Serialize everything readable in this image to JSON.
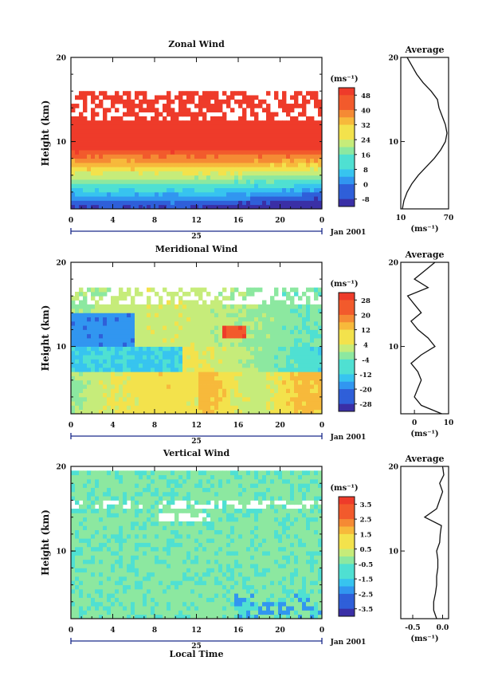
{
  "chart_data": [
    {
      "type": "heatmap",
      "title": "Zonal Wind",
      "ylabel": "Height (km)",
      "ylim": [
        2,
        20
      ],
      "yticks": [
        "10",
        "20"
      ],
      "xticks": [
        "0",
        "4",
        "8",
        "12",
        "16",
        "20",
        "0"
      ],
      "day_label": "25",
      "month_label": "Jan 2001",
      "colorbar": {
        "unit": "(ms⁻¹)",
        "ticks": [
          "48",
          "40",
          "32",
          "24",
          "16",
          "8",
          "0",
          "-8"
        ],
        "range": [
          -12,
          52
        ]
      },
      "average_profile": {
        "title": "Average",
        "xlabel": "(ms⁻¹)",
        "xticks": [
          "10",
          "70"
        ],
        "xlim": [
          10,
          70
        ],
        "yticks": [
          "10",
          "20"
        ],
        "heights_km": [
          2,
          3,
          4,
          5,
          6,
          7,
          8,
          9,
          10,
          11,
          12,
          13,
          14,
          15,
          16,
          17,
          18,
          19,
          20
        ],
        "values": [
          12,
          14,
          18,
          24,
          32,
          42,
          52,
          60,
          66,
          68,
          66,
          62,
          58,
          56,
          48,
          38,
          30,
          24,
          18
        ]
      }
    },
    {
      "type": "heatmap",
      "title": "Meridional Wind",
      "ylabel": "Height (km)",
      "ylim": [
        2,
        20
      ],
      "yticks": [
        "10",
        "20"
      ],
      "xticks": [
        "0",
        "4",
        "8",
        "12",
        "16",
        "20",
        "0"
      ],
      "day_label": "25",
      "month_label": "Jan 2001",
      "colorbar": {
        "unit": "(ms⁻¹)",
        "ticks": [
          "28",
          "20",
          "12",
          "4",
          "-4",
          "-12",
          "-20",
          "-28"
        ],
        "range": [
          -32,
          32
        ]
      },
      "average_profile": {
        "title": "Average",
        "xlabel": "(ms⁻¹)",
        "xticks": [
          "0",
          "10"
        ],
        "xlim": [
          -4,
          10
        ],
        "yticks": [
          "10",
          "20"
        ],
        "heights_km": [
          2,
          3,
          4,
          5,
          6,
          7,
          8,
          9,
          10,
          11,
          12,
          13,
          14,
          15,
          16,
          17,
          18,
          19,
          20
        ],
        "values": [
          8,
          2,
          0,
          1,
          2,
          1,
          -1,
          2,
          6,
          4,
          1,
          -1,
          2,
          0,
          -2,
          4,
          0,
          3,
          6
        ]
      }
    },
    {
      "type": "heatmap",
      "title": "Vertical Wind",
      "ylabel": "Height (km)",
      "xlabel": "Local Time",
      "ylim": [
        2,
        20
      ],
      "yticks": [
        "10",
        "20"
      ],
      "xticks": [
        "0",
        "4",
        "8",
        "12",
        "16",
        "20",
        "0"
      ],
      "day_label": "25",
      "month_label": "Jan 2001",
      "colorbar": {
        "unit": "(ms⁻¹)",
        "ticks": [
          "3.5",
          "2.5",
          "1.5",
          "0.5",
          "-0.5",
          "-1.5",
          "-2.5",
          "-3.5"
        ],
        "range": [
          -4,
          4
        ]
      },
      "average_profile": {
        "title": "Average",
        "xlabel": "(ms⁻¹)",
        "xticks": [
          "-0.5",
          "0.0"
        ],
        "xlim": [
          -0.7,
          0.1
        ],
        "yticks": [
          "10",
          "20"
        ],
        "heights_km": [
          2,
          3,
          4,
          5,
          6,
          7,
          8,
          9,
          10,
          11,
          12,
          13,
          14,
          15,
          16,
          17,
          18,
          19,
          20
        ],
        "values": [
          -0.1,
          -0.15,
          -0.15,
          -0.12,
          -0.1,
          -0.1,
          -0.08,
          -0.08,
          -0.1,
          -0.05,
          -0.04,
          -0.02,
          -0.3,
          -0.1,
          -0.05,
          0.0,
          -0.05,
          0.02,
          0.0
        ]
      }
    }
  ]
}
